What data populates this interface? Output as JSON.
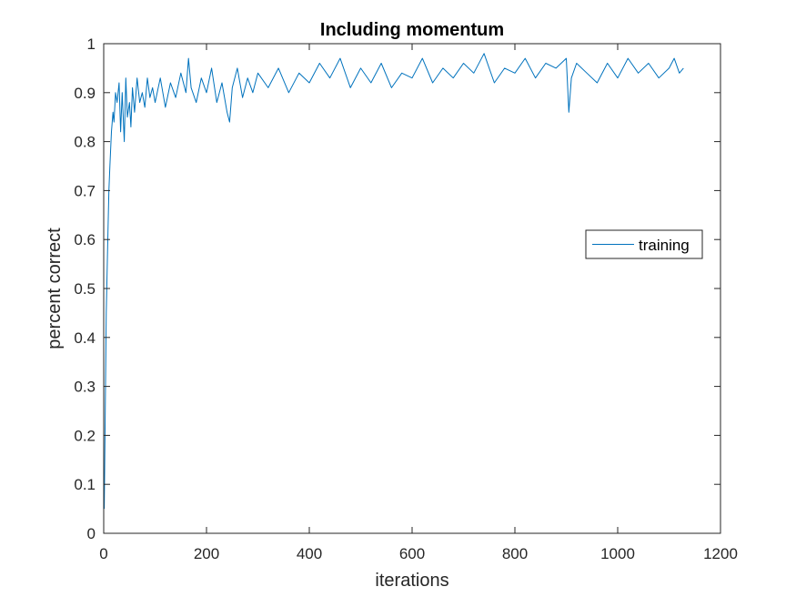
{
  "chart_data": {
    "type": "line",
    "title": "Including momentum",
    "xlabel": "iterations",
    "ylabel": "percent correct",
    "xlim": [
      0,
      1200
    ],
    "ylim": [
      0,
      1
    ],
    "xticks": [
      0,
      200,
      400,
      600,
      800,
      1000,
      1200
    ],
    "yticks": [
      0,
      0.1,
      0.2,
      0.3,
      0.4,
      0.5,
      0.6,
      0.7,
      0.8,
      0.9,
      1
    ],
    "xtick_labels": [
      "0",
      "200",
      "400",
      "600",
      "800",
      "1000",
      "1200"
    ],
    "ytick_labels": [
      "0",
      "0.1",
      "0.2",
      "0.3",
      "0.4",
      "0.5",
      "0.6",
      "0.7",
      "0.8",
      "0.9",
      "1"
    ],
    "grid": false,
    "legend_position": "right",
    "series": [
      {
        "name": "training",
        "color": "#0072BD",
        "x": [
          1,
          3,
          5,
          8,
          10,
          12,
          15,
          18,
          20,
          23,
          26,
          30,
          33,
          36,
          40,
          43,
          46,
          50,
          53,
          56,
          60,
          65,
          70,
          75,
          80,
          85,
          90,
          95,
          100,
          110,
          120,
          130,
          140,
          150,
          160,
          165,
          170,
          180,
          190,
          200,
          210,
          220,
          230,
          240,
          245,
          250,
          260,
          270,
          280,
          290,
          300,
          320,
          340,
          360,
          380,
          400,
          420,
          440,
          460,
          480,
          500,
          520,
          540,
          560,
          580,
          600,
          620,
          640,
          660,
          680,
          700,
          720,
          740,
          760,
          780,
          800,
          820,
          840,
          860,
          880,
          900,
          905,
          910,
          920,
          940,
          960,
          980,
          1000,
          1020,
          1040,
          1060,
          1080,
          1100,
          1110,
          1120,
          1128
        ],
        "y": [
          0.05,
          0.25,
          0.45,
          0.6,
          0.7,
          0.75,
          0.82,
          0.86,
          0.84,
          0.9,
          0.88,
          0.92,
          0.82,
          0.9,
          0.8,
          0.93,
          0.85,
          0.88,
          0.83,
          0.91,
          0.86,
          0.93,
          0.88,
          0.9,
          0.87,
          0.93,
          0.89,
          0.91,
          0.88,
          0.93,
          0.87,
          0.92,
          0.89,
          0.94,
          0.9,
          0.97,
          0.91,
          0.88,
          0.93,
          0.9,
          0.95,
          0.88,
          0.92,
          0.86,
          0.84,
          0.91,
          0.95,
          0.89,
          0.93,
          0.9,
          0.94,
          0.91,
          0.95,
          0.9,
          0.94,
          0.92,
          0.96,
          0.93,
          0.97,
          0.91,
          0.95,
          0.92,
          0.96,
          0.91,
          0.94,
          0.93,
          0.97,
          0.92,
          0.95,
          0.93,
          0.96,
          0.94,
          0.98,
          0.92,
          0.95,
          0.94,
          0.97,
          0.93,
          0.96,
          0.95,
          0.97,
          0.86,
          0.93,
          0.96,
          0.94,
          0.92,
          0.96,
          0.93,
          0.97,
          0.94,
          0.96,
          0.93,
          0.95,
          0.97,
          0.94,
          0.95
        ]
      }
    ]
  }
}
